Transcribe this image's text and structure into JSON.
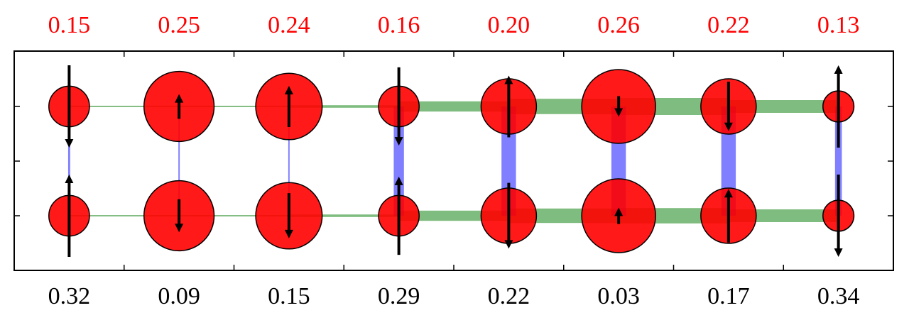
{
  "chart_data": {
    "type": "lattice",
    "top_labels": [
      "0.15",
      "0.25",
      "0.24",
      "0.16",
      "0.20",
      "0.26",
      "0.22",
      "0.13"
    ],
    "bottom_labels": [
      "0.32",
      "0.09",
      "0.15",
      "0.29",
      "0.22",
      "0.03",
      "0.17",
      "0.34"
    ],
    "site_size_top": [
      0.55,
      0.95,
      0.9,
      0.55,
      0.75,
      1.0,
      0.75,
      0.42
    ],
    "site_size_bottom": [
      0.55,
      0.95,
      0.9,
      0.55,
      0.75,
      1.0,
      0.75,
      0.42
    ],
    "spin_top": [
      -1.0,
      0.3,
      0.5,
      -0.95,
      0.75,
      -0.25,
      -0.6,
      1.0
    ],
    "spin_bottom": [
      1.0,
      -0.4,
      -0.55,
      0.95,
      -0.8,
      0.2,
      0.65,
      -1.0
    ],
    "rung_weights": [
      0.12,
      0.08,
      0.08,
      0.6,
      0.85,
      0.85,
      0.85,
      0.4
    ],
    "leg_weights_top": [
      0.08,
      0.08,
      0.15,
      0.6,
      0.9,
      1.0,
      0.75
    ],
    "leg_weights_bottom": [
      0.08,
      0.08,
      0.15,
      0.6,
      0.85,
      0.9,
      0.75
    ],
    "site_color": "#ff0000",
    "rung_color": "#0000ff",
    "leg_color": "#2a8f2a",
    "top_label_color": "#ff0000"
  }
}
